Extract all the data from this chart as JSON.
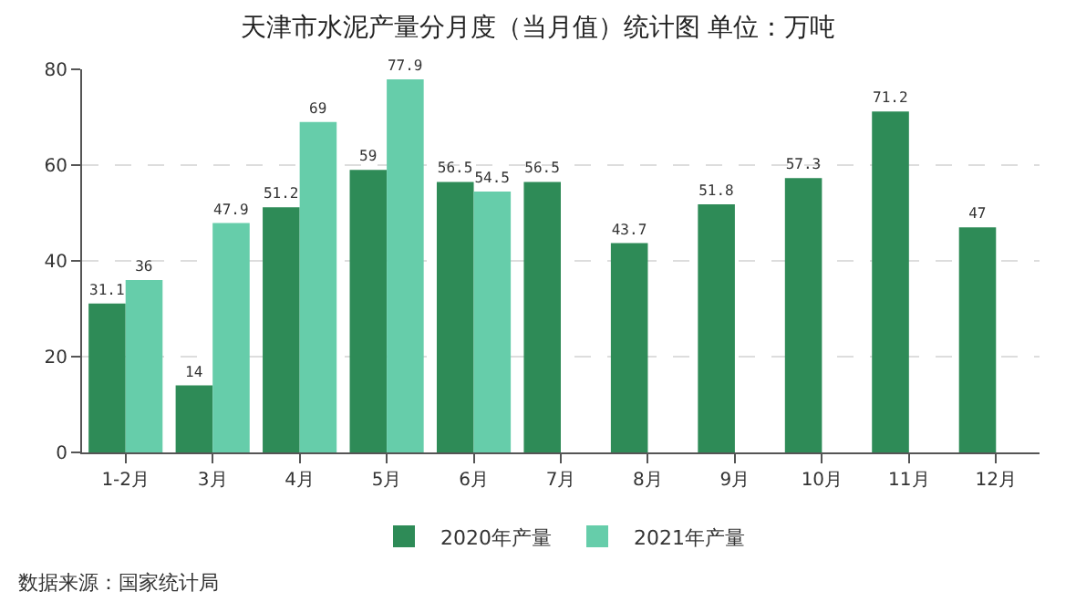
{
  "chart_data": {
    "type": "bar",
    "title": "天津市水泥产量分月度（当月值）统计图 单位：万吨",
    "categories": [
      "1-2月",
      "3月",
      "4月",
      "5月",
      "6月",
      "7月",
      "8月",
      "9月",
      "10月",
      "11月",
      "12月"
    ],
    "series": [
      {
        "name": "2020年产量",
        "color": "#2e8b57",
        "values": [
          31.1,
          14,
          51.2,
          59,
          56.5,
          56.5,
          43.7,
          51.8,
          57.3,
          71.2,
          47
        ]
      },
      {
        "name": "2021年产量",
        "color": "#66cdaa",
        "values": [
          36,
          47.9,
          69,
          77.9,
          54.5,
          null,
          null,
          null,
          null,
          null,
          null
        ]
      }
    ],
    "ylim": [
      0,
      80
    ],
    "yticks": [
      0,
      20,
      40,
      60,
      80
    ],
    "grid": "y",
    "legend": "bottom",
    "data_labels": true,
    "annotations": [
      "数据来源：国家统计局"
    ]
  }
}
